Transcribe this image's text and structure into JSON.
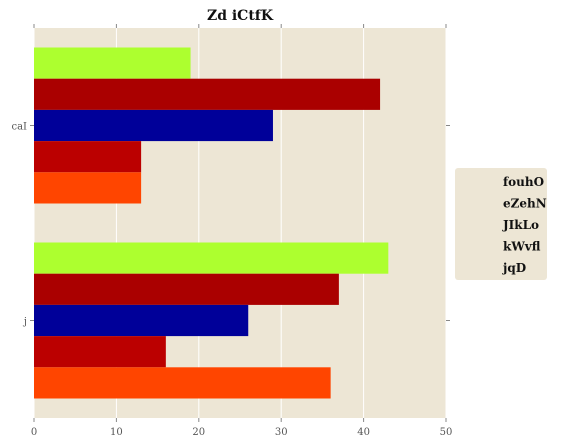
{
  "chart_data": {
    "type": "bar",
    "orientation": "horizontal",
    "title": "Zd iCtfK",
    "categories": [
      "caI",
      "j"
    ],
    "xlim": [
      0,
      50
    ],
    "xticks": [
      0,
      10,
      20,
      30,
      40,
      50
    ],
    "grid": true,
    "legend_position": "right",
    "background_color": "#ede6d5",
    "series": [
      {
        "name": "fouhO",
        "color": "#adff2f",
        "values": [
          19,
          43
        ]
      },
      {
        "name": "eZehN",
        "color": "#aa0000",
        "values": [
          42,
          37
        ]
      },
      {
        "name": "JIkLo",
        "color": "#000099",
        "values": [
          29,
          26
        ]
      },
      {
        "name": "kWvfl",
        "color": "#bb0000",
        "values": [
          13,
          16
        ]
      },
      {
        "name": "jqD",
        "color": "#ff4500",
        "values": [
          13,
          36
        ]
      }
    ]
  }
}
